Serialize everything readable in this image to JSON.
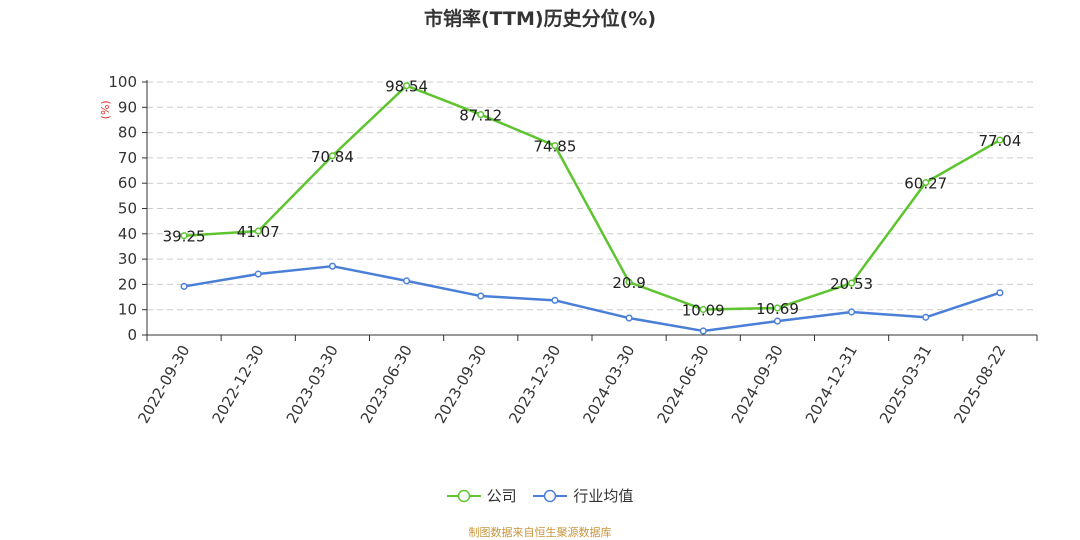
{
  "chart_data": {
    "type": "line",
    "title": "市销率(TTM)历史分位(%)",
    "ylabel": "(%)",
    "xlabel": "",
    "ylim": [
      0,
      100
    ],
    "yticks": [
      0,
      10,
      20,
      30,
      40,
      50,
      60,
      70,
      80,
      90,
      100
    ],
    "grid": "horizontal dashed",
    "legend_position": "bottom",
    "categories": [
      "2022-09-30",
      "2022-12-30",
      "2023-03-30",
      "2023-06-30",
      "2023-09-30",
      "2023-12-30",
      "2024-03-30",
      "2024-06-30",
      "2024-09-30",
      "2024-12-31",
      "2025-03-31",
      "2025-08-22"
    ],
    "series": [
      {
        "name": "公司",
        "color": "#5ec42f",
        "values": [
          39.25,
          41.07,
          70.84,
          98.54,
          87.12,
          74.85,
          20.9,
          10.09,
          10.69,
          20.53,
          60.27,
          77.04
        ],
        "labels": [
          "39.25",
          "41.07",
          "70.84",
          "98.54",
          "87.12",
          "74.85",
          "20.9",
          "10.09",
          "10.69",
          "20.53",
          "60.27",
          "77.04"
        ]
      },
      {
        "name": "行业均值",
        "color": "#4a7fd8",
        "values": [
          19.2,
          24.1,
          27.2,
          21.4,
          15.4,
          13.7,
          6.7,
          1.6,
          5.5,
          9.1,
          7.0,
          16.7
        ]
      }
    ]
  },
  "source_note": "制图数据来自恒生聚源数据库"
}
